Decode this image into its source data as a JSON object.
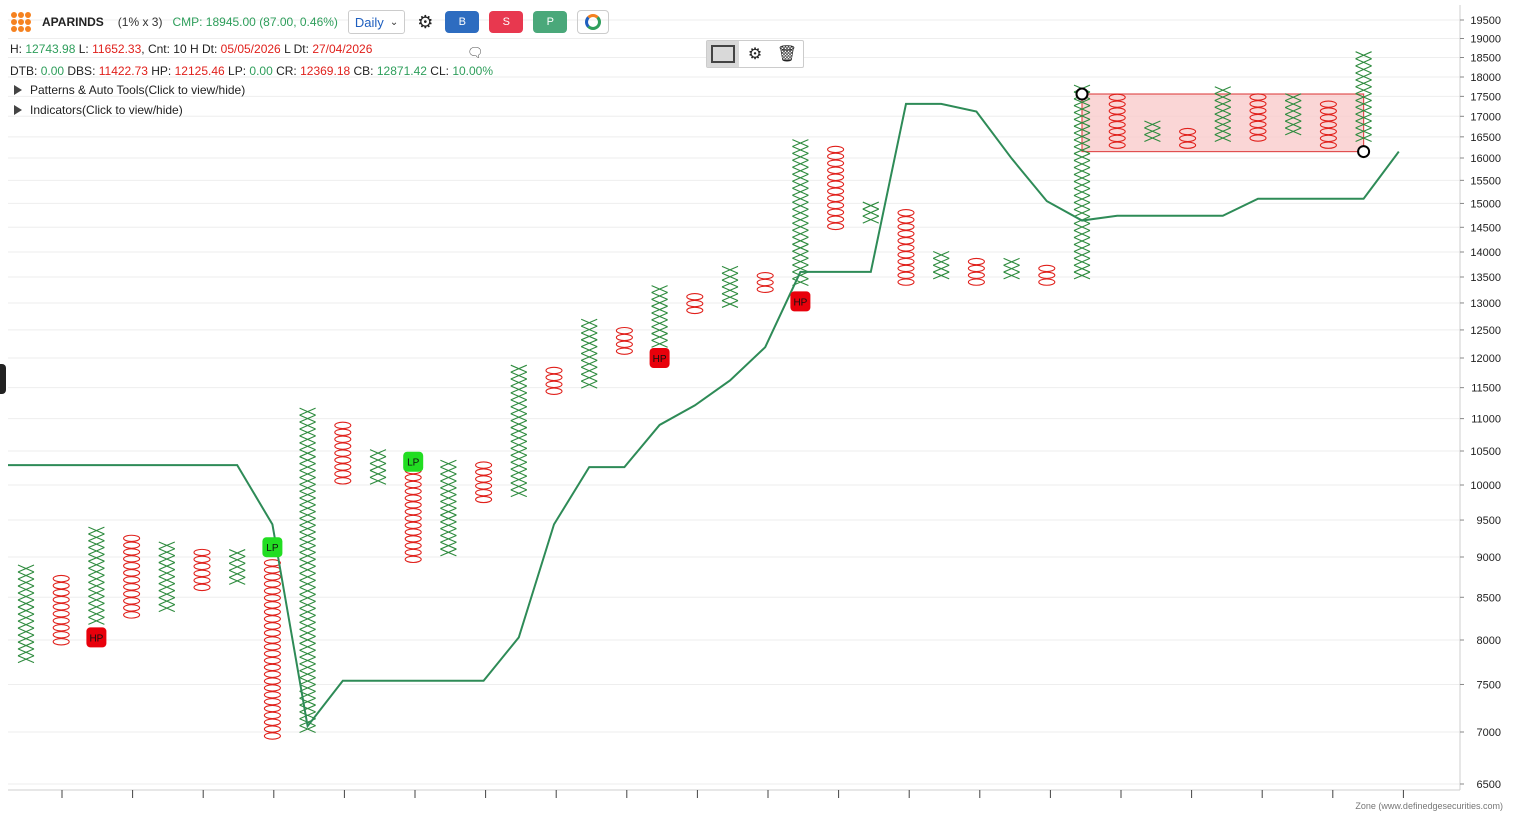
{
  "header": {
    "symbol": "APARINDS",
    "box_setting": "(1% x 3)",
    "cmp": "CMP: 18945.00 (87.00, 0.46%)",
    "period": "Daily",
    "buttons": [
      "B",
      "S",
      "P"
    ],
    "button_colors": [
      "#2d6cc0",
      "#e8384f",
      "#4aa87a"
    ]
  },
  "info_line1": {
    "h_label": "H:",
    "h_value": "12743.98",
    "l_label": "L:",
    "l_value": "11652.33",
    "cnt_label": ", Cnt: 10 H Dt:",
    "h_dt": "05/05/2026",
    "ldt_label": "L Dt:",
    "l_dt": "27/04/2026"
  },
  "info_line2": {
    "dtb_label": "DTB:",
    "dtb": "0.00",
    "dbs_label": "DBS:",
    "dbs": "11422.73",
    "hp_label": "HP:",
    "hp": "12125.46",
    "lp_label": "LP:",
    "lp": "0.00",
    "cr_label": "CR:",
    "cr": "12369.18",
    "cb_label": "CB:",
    "cb": "12871.42",
    "cl_label": "CL:",
    "cl": "10.00%"
  },
  "toggles": {
    "patterns": "Patterns & Auto Tools(Click to view/hide)",
    "indicators": "Indicators(Click to view/hide)"
  },
  "footer": "Zone (www.definedgesecurities.com)",
  "colors": {
    "x": "#2e8b3e",
    "o": "#e0201b",
    "line": "#2e8b57",
    "zone_fill": "#f8c8c8",
    "zone_stroke": "#e05050",
    "hp_fill": "#e8000b",
    "lp_fill": "#22dd22"
  },
  "chart_data": {
    "type": "point-and-figure",
    "box_size": "1%",
    "reversal": 3,
    "y_scale": "log",
    "ylim": [
      6450,
      19700
    ],
    "y_ticks": [
      19500,
      19000,
      18500,
      18000,
      17500,
      17000,
      16500,
      16000,
      15500,
      15000,
      14500,
      14000,
      13500,
      13000,
      12500,
      12000,
      11500,
      11000,
      10500,
      10000,
      9500,
      9000,
      8500,
      8000,
      7500,
      7000,
      6500
    ],
    "columns": [
      {
        "type": "X",
        "low": 7780,
        "high": 8830
      },
      {
        "type": "O",
        "low": 7980,
        "high": 8740
      },
      {
        "type": "X",
        "low": 8220,
        "high": 9310
      },
      {
        "type": "O",
        "low": 8290,
        "high": 9250
      },
      {
        "type": "X",
        "low": 8370,
        "high": 9150
      },
      {
        "type": "O",
        "low": 8620,
        "high": 9060
      },
      {
        "type": "X",
        "low": 8700,
        "high": 9060
      },
      {
        "type": "O",
        "low": 6960,
        "high": 8970
      },
      {
        "type": "X",
        "low": 7030,
        "high": 11070
      },
      {
        "type": "O",
        "low": 10060,
        "high": 10850
      },
      {
        "type": "X",
        "low": 10060,
        "high": 10460
      },
      {
        "type": "O",
        "low": 8970,
        "high": 10250
      },
      {
        "type": "X",
        "low": 9060,
        "high": 10360
      },
      {
        "type": "O",
        "low": 9790,
        "high": 10250
      },
      {
        "type": "X",
        "low": 9880,
        "high": 11790
      },
      {
        "type": "O",
        "low": 11440,
        "high": 11790
      },
      {
        "type": "X",
        "low": 11550,
        "high": 12600
      },
      {
        "type": "O",
        "low": 12120,
        "high": 12480
      },
      {
        "type": "X",
        "low": 12250,
        "high": 13260
      },
      {
        "type": "O",
        "low": 12860,
        "high": 13130
      },
      {
        "type": "X",
        "low": 12980,
        "high": 13660
      },
      {
        "type": "O",
        "low": 13260,
        "high": 13530
      },
      {
        "type": "X",
        "low": 13400,
        "high": 16300
      },
      {
        "type": "O",
        "low": 14520,
        "high": 16140
      },
      {
        "type": "X",
        "low": 14660,
        "high": 14970
      },
      {
        "type": "O",
        "low": 13400,
        "high": 14830
      },
      {
        "type": "X",
        "low": 13530,
        "high": 13950
      },
      {
        "type": "O",
        "low": 13400,
        "high": 13810
      },
      {
        "type": "X",
        "low": 13530,
        "high": 13810
      },
      {
        "type": "O",
        "low": 13400,
        "high": 13660
      },
      {
        "type": "X",
        "low": 13530,
        "high": 17650
      },
      {
        "type": "O",
        "low": 16300,
        "high": 17470
      },
      {
        "type": "X",
        "low": 16470,
        "high": 16800
      },
      {
        "type": "O",
        "low": 16300,
        "high": 16630
      },
      {
        "type": "X",
        "low": 16470,
        "high": 17650
      },
      {
        "type": "O",
        "low": 16470,
        "high": 17470
      },
      {
        "type": "X",
        "low": 16630,
        "high": 17470
      },
      {
        "type": "O",
        "low": 16300,
        "high": 17300
      },
      {
        "type": "X",
        "low": 16470,
        "high": 18550
      }
    ],
    "trend_line": [
      [
        0,
        10290
      ],
      [
        6,
        10290
      ],
      [
        7,
        9440
      ],
      [
        8,
        7060
      ],
      [
        9,
        7540
      ],
      [
        13,
        7540
      ],
      [
        14,
        8030
      ],
      [
        15,
        9440
      ],
      [
        16,
        10260
      ],
      [
        17,
        10260
      ],
      [
        18,
        10900
      ],
      [
        19,
        11210
      ],
      [
        20,
        11620
      ],
      [
        21,
        12190
      ],
      [
        22,
        13600
      ],
      [
        24,
        13600
      ],
      [
        25,
        17310
      ],
      [
        26,
        17310
      ],
      [
        27,
        17120
      ],
      [
        28,
        15990
      ],
      [
        29,
        15050
      ],
      [
        30,
        14640
      ],
      [
        31,
        14740
      ],
      [
        33,
        14740
      ],
      [
        34,
        14740
      ],
      [
        35,
        15100
      ],
      [
        37,
        15100
      ],
      [
        38,
        15100
      ],
      [
        39,
        16150
      ]
    ],
    "markers": [
      {
        "label": "HP",
        "col": 2,
        "value": 8030
      },
      {
        "label": "LP",
        "col": 7,
        "value": 9130
      },
      {
        "label": "LP",
        "col": 11,
        "value": 10340
      },
      {
        "label": "HP",
        "col": 18,
        "value": 12000
      },
      {
        "label": "HP",
        "col": 22,
        "value": 13030
      }
    ],
    "zone": {
      "col_start": 30,
      "col_end": 38,
      "top": 17560,
      "bottom": 16150
    }
  }
}
